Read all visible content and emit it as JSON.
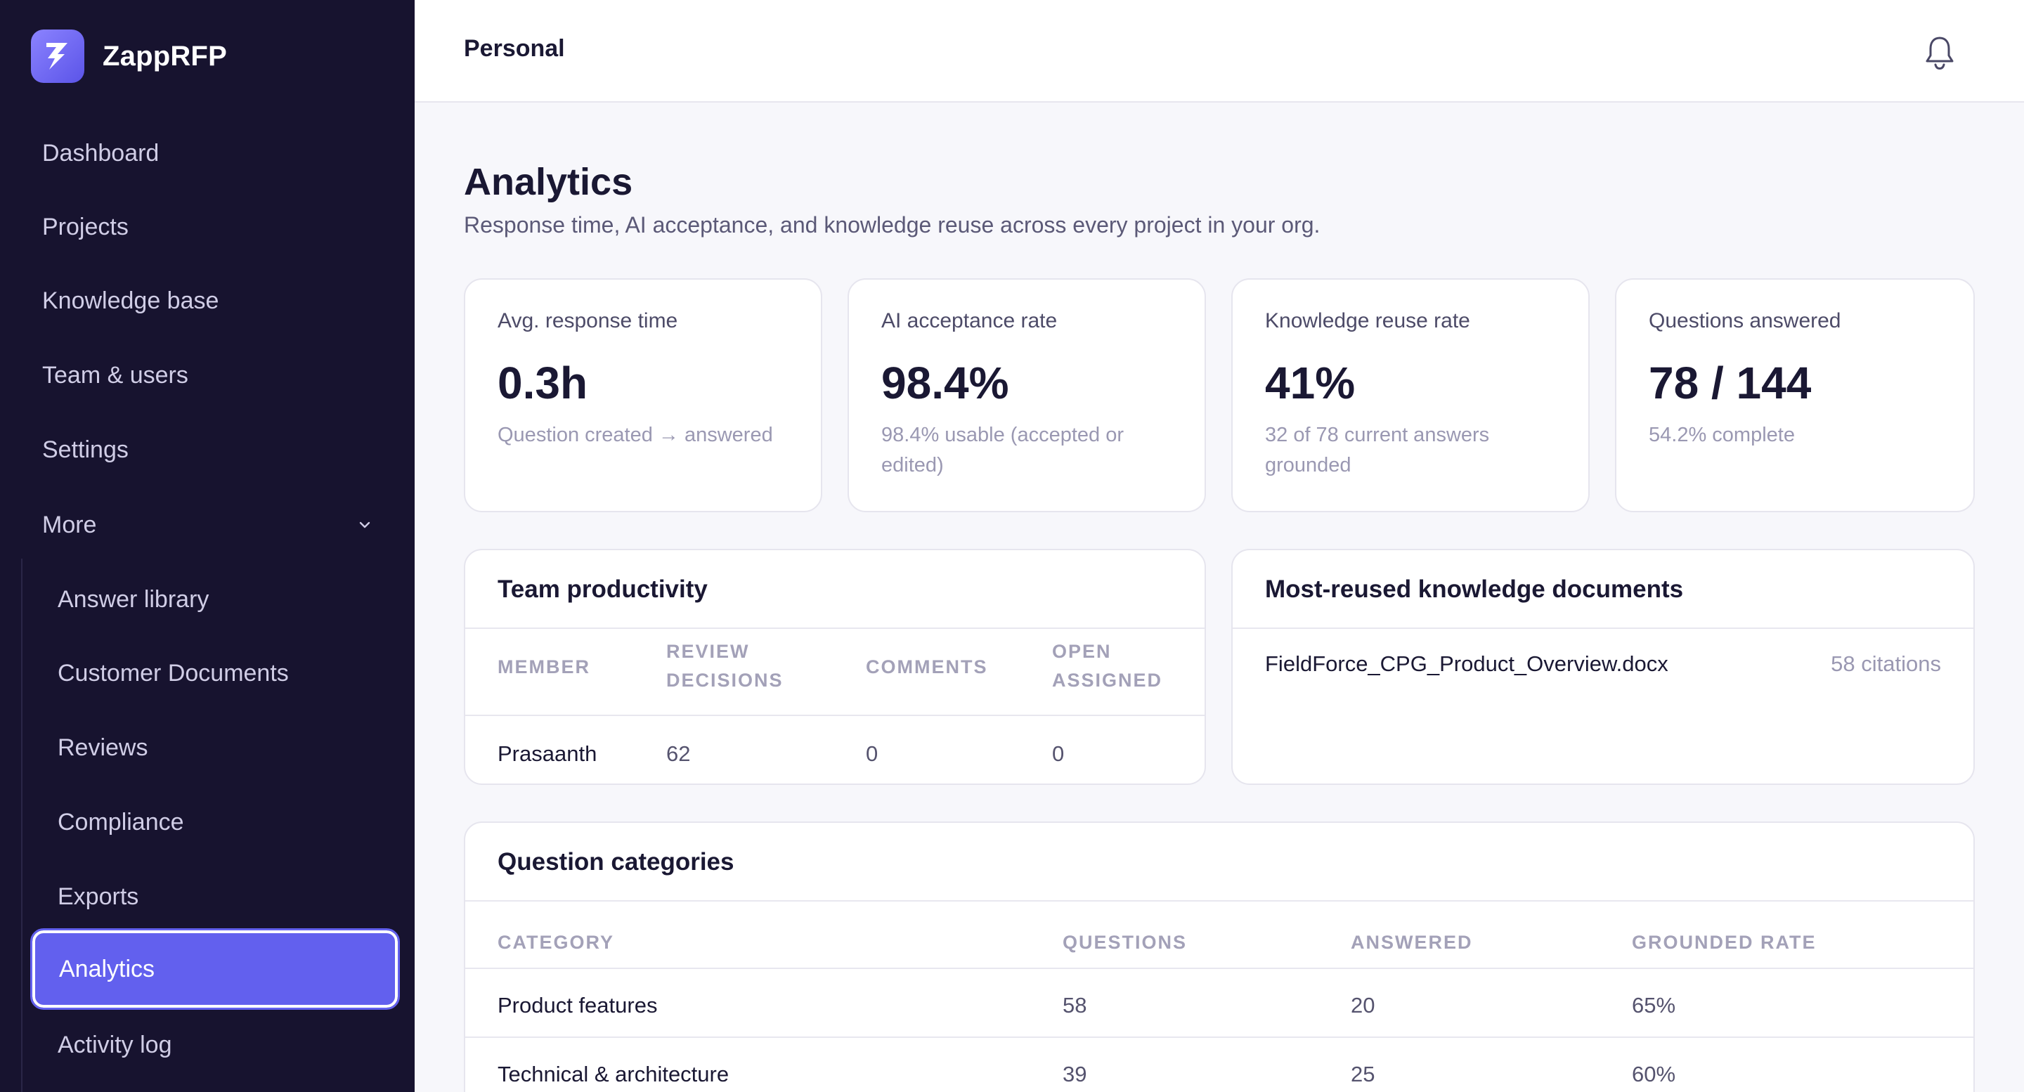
{
  "app": {
    "name": "ZappRFP"
  },
  "sidebar": {
    "items": [
      {
        "label": "Dashboard"
      },
      {
        "label": "Projects"
      },
      {
        "label": "Knowledge base"
      },
      {
        "label": "Team & users"
      },
      {
        "label": "Settings"
      }
    ],
    "more_label": "More",
    "sub_items": [
      {
        "label": "Answer library"
      },
      {
        "label": "Customer Documents"
      },
      {
        "label": "Reviews"
      },
      {
        "label": "Compliance"
      },
      {
        "label": "Exports"
      },
      {
        "label": "Analytics",
        "active": true
      },
      {
        "label": "Activity log"
      }
    ]
  },
  "header": {
    "workspace": "Personal"
  },
  "page": {
    "title": "Analytics",
    "subtitle": "Response time, AI acceptance, and knowledge reuse across every project in your org."
  },
  "stats": [
    {
      "label": "Avg. response time",
      "value": "0.3h",
      "sub": "Question created → answered"
    },
    {
      "label": "AI acceptance rate",
      "value": "98.4%",
      "sub": "98.4% usable (accepted or edited)"
    },
    {
      "label": "Knowledge reuse rate",
      "value": "41%",
      "sub": "32 of 78 current answers grounded"
    },
    {
      "label": "Questions answered",
      "value": "78 / 144",
      "sub": "54.2% complete"
    }
  ],
  "team": {
    "title": "Team productivity",
    "columns": [
      "MEMBER",
      "REVIEW DECISIONS",
      "COMMENTS",
      "OPEN ASSIGNED"
    ],
    "rows": [
      {
        "member": "Prasaanth",
        "review_decisions": "62",
        "comments": "0",
        "open_assigned": "0"
      }
    ]
  },
  "documents": {
    "title": "Most-reused knowledge documents",
    "items": [
      {
        "name": "FieldForce_CPG_Product_Overview.docx",
        "citations": "58 citations"
      }
    ]
  },
  "categories": {
    "title": "Question categories",
    "columns": [
      "CATEGORY",
      "QUESTIONS",
      "ANSWERED",
      "GROUNDED RATE"
    ],
    "rows": [
      {
        "category": "Product features",
        "questions": "58",
        "answered": "20",
        "grounded_rate": "65%"
      },
      {
        "category": "Technical & architecture",
        "questions": "39",
        "answered": "25",
        "grounded_rate": "60%"
      }
    ]
  },
  "colors": {
    "sidebar_bg": "#17132f",
    "accent": "#6260ee",
    "page_bg": "#f7f7fb"
  }
}
